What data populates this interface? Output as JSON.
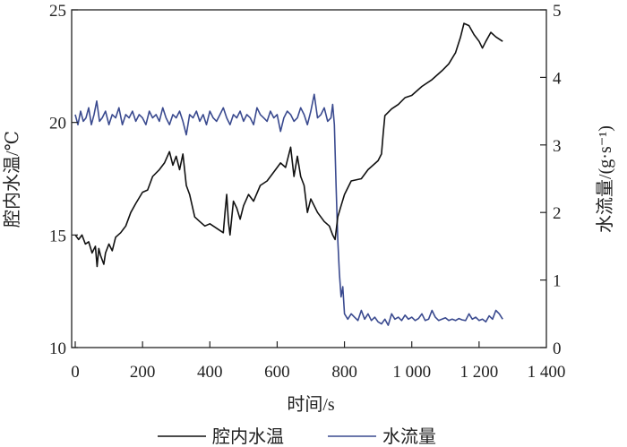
{
  "chart_data": {
    "type": "line",
    "xlabel": "时间/s",
    "ylabel_left": "腔内水温/℃",
    "ylabel_right": "水流量/(g·s⁻¹)",
    "xlim": [
      0,
      1400
    ],
    "ylim_left": [
      10,
      25
    ],
    "ylim_right": [
      0,
      5
    ],
    "x_ticks": [
      0,
      200,
      400,
      600,
      800,
      1000,
      1200,
      1400
    ],
    "x_tick_labels": [
      "0",
      "200",
      "400",
      "600",
      "800",
      "1 000",
      "1 200",
      "1 400"
    ],
    "y_left_ticks": [
      "10",
      "15",
      "20",
      "25"
    ],
    "y_right_ticks": [
      "0",
      "1",
      "2",
      "3",
      "4",
      "5"
    ],
    "grid": false,
    "legend_placement": "bottom",
    "series": [
      {
        "name": "腔内水温",
        "axis": "left",
        "color": "#111111",
        "x": [
          0,
          10,
          20,
          30,
          40,
          50,
          60,
          65,
          70,
          75,
          85,
          90,
          100,
          110,
          120,
          135,
          150,
          165,
          180,
          200,
          215,
          230,
          250,
          265,
          280,
          290,
          300,
          310,
          320,
          330,
          340,
          355,
          370,
          385,
          400,
          420,
          440,
          445,
          450,
          455,
          460,
          470,
          480,
          490,
          500,
          515,
          530,
          550,
          570,
          590,
          610,
          625,
          640,
          650,
          660,
          670,
          680,
          690,
          700,
          720,
          740,
          755,
          765,
          772,
          780,
          790,
          800,
          820,
          850,
          870,
          900,
          910,
          915,
          920,
          940,
          960,
          980,
          1000,
          1030,
          1060,
          1090,
          1110,
          1130,
          1145,
          1155,
          1170,
          1185,
          1200,
          1210,
          1220,
          1235,
          1250,
          1270
        ],
        "y": [
          15.0,
          14.8,
          15.0,
          14.6,
          14.7,
          14.2,
          14.5,
          13.6,
          14.4,
          14.1,
          13.7,
          14.2,
          14.6,
          14.3,
          14.9,
          15.1,
          15.4,
          16.0,
          16.4,
          16.9,
          17.0,
          17.6,
          17.9,
          18.2,
          18.7,
          18.1,
          18.5,
          17.9,
          18.6,
          17.2,
          16.8,
          15.8,
          15.6,
          15.4,
          15.5,
          15.3,
          15.1,
          16.0,
          16.8,
          15.6,
          15.0,
          16.5,
          16.2,
          15.7,
          16.3,
          16.8,
          16.5,
          17.2,
          17.4,
          17.8,
          18.2,
          18.0,
          18.9,
          17.6,
          18.5,
          17.6,
          17.2,
          16.0,
          16.6,
          16.0,
          15.6,
          15.4,
          15.0,
          14.8,
          15.8,
          16.3,
          16.8,
          17.4,
          17.5,
          17.9,
          18.3,
          18.6,
          19.5,
          20.3,
          20.6,
          20.8,
          21.1,
          21.2,
          21.6,
          21.9,
          22.3,
          22.6,
          23.1,
          23.8,
          24.4,
          24.3,
          23.9,
          23.6,
          23.3,
          23.6,
          24.0,
          23.8,
          23.6
        ]
      },
      {
        "name": "水流量",
        "axis": "right",
        "color": "#3a4a8f",
        "x": [
          0,
          8,
          16,
          24,
          32,
          40,
          48,
          56,
          64,
          72,
          80,
          90,
          100,
          110,
          120,
          130,
          140,
          150,
          160,
          170,
          180,
          190,
          200,
          210,
          220,
          230,
          240,
          250,
          260,
          270,
          280,
          290,
          300,
          310,
          320,
          330,
          340,
          350,
          360,
          370,
          380,
          390,
          400,
          410,
          420,
          430,
          440,
          450,
          460,
          470,
          480,
          490,
          500,
          510,
          520,
          530,
          540,
          550,
          560,
          570,
          580,
          590,
          600,
          610,
          620,
          630,
          640,
          650,
          660,
          670,
          680,
          690,
          700,
          710,
          720,
          730,
          740,
          750,
          760,
          765,
          770,
          775,
          780,
          785,
          790,
          795,
          800,
          810,
          820,
          830,
          840,
          850,
          860,
          870,
          880,
          890,
          900,
          910,
          920,
          930,
          940,
          950,
          960,
          970,
          980,
          990,
          1000,
          1010,
          1020,
          1030,
          1040,
          1050,
          1060,
          1070,
          1080,
          1090,
          1100,
          1110,
          1120,
          1130,
          1140,
          1150,
          1160,
          1170,
          1180,
          1190,
          1200,
          1210,
          1220,
          1230,
          1240,
          1250,
          1260,
          1270
        ],
        "y": [
          3.45,
          3.3,
          3.5,
          3.35,
          3.4,
          3.55,
          3.3,
          3.45,
          3.65,
          3.35,
          3.4,
          3.5,
          3.3,
          3.45,
          3.4,
          3.55,
          3.3,
          3.45,
          3.4,
          3.5,
          3.35,
          3.45,
          3.4,
          3.3,
          3.5,
          3.4,
          3.45,
          3.35,
          3.55,
          3.4,
          3.3,
          3.45,
          3.4,
          3.5,
          3.35,
          3.15,
          3.45,
          3.4,
          3.5,
          3.35,
          3.45,
          3.3,
          3.5,
          3.4,
          3.35,
          3.45,
          3.55,
          3.4,
          3.3,
          3.45,
          3.4,
          3.5,
          3.35,
          3.45,
          3.4,
          3.3,
          3.55,
          3.45,
          3.4,
          3.35,
          3.5,
          3.4,
          3.45,
          3.2,
          3.4,
          3.5,
          3.45,
          3.35,
          3.4,
          3.55,
          3.45,
          3.3,
          3.5,
          3.75,
          3.4,
          3.45,
          3.55,
          3.35,
          3.4,
          3.6,
          3.3,
          2.4,
          1.6,
          1.1,
          0.75,
          0.9,
          0.5,
          0.42,
          0.5,
          0.45,
          0.4,
          0.55,
          0.42,
          0.5,
          0.4,
          0.45,
          0.38,
          0.35,
          0.42,
          0.33,
          0.5,
          0.42,
          0.45,
          0.4,
          0.48,
          0.42,
          0.45,
          0.4,
          0.43,
          0.5,
          0.4,
          0.42,
          0.55,
          0.45,
          0.4,
          0.42,
          0.44,
          0.4,
          0.42,
          0.4,
          0.43,
          0.41,
          0.4,
          0.5,
          0.42,
          0.45,
          0.4,
          0.42,
          0.38,
          0.47,
          0.42,
          0.55,
          0.5,
          0.42
        ]
      }
    ]
  }
}
